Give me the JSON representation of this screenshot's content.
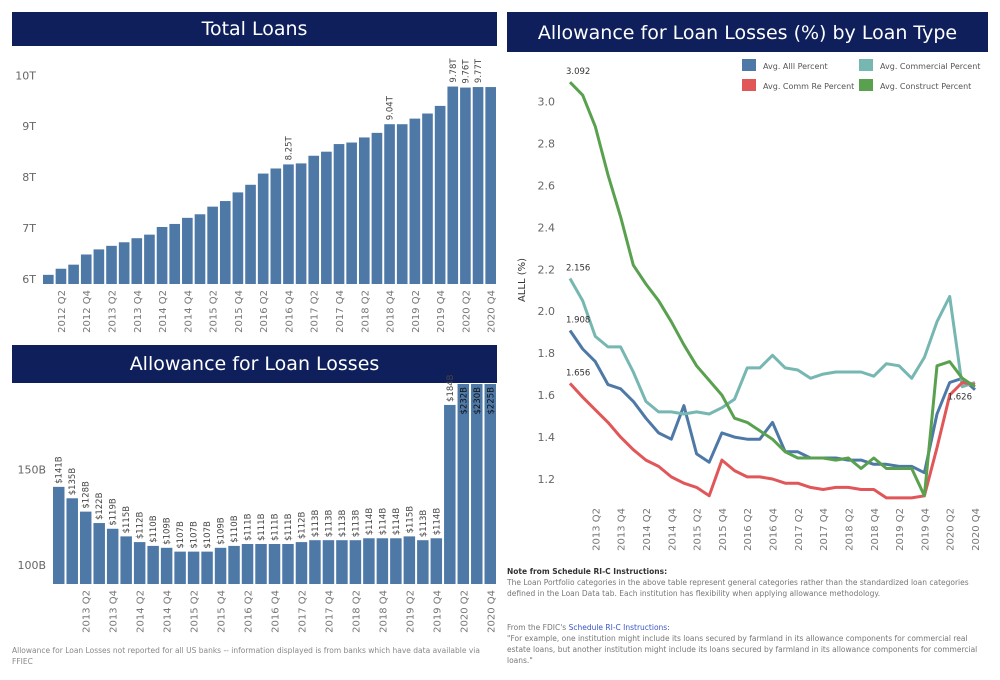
{
  "headers": {
    "total_loans": "Total Loans",
    "allowance": "Allowance for Loan Losses",
    "alll": "Allowance for Loan Losses (%) by Loan Type"
  },
  "colors": {
    "header_bg": "#0e1f5b",
    "bar": "#4e79a7",
    "alll": "#4e79a7",
    "commercial": "#76b7b2",
    "comm_re": "#e15759",
    "construct": "#59a14f"
  },
  "footnote": "Allowance for Loan Losses not reported for all US banks -- information displayed is from banks which have data available via FFIEC",
  "rc_note": {
    "title": "Note from Schedule RI-C Instructions:",
    "body": "The Loan Portfolio categories in the above table represent general categories rather than the standardized loan categories defined in the Loan Data tab. Each institution has flexibility when applying allowance methodology."
  },
  "fdic_note": {
    "prefix": "From the FDIC's",
    "link": "Schedule RI-C Instructions:",
    "quote": "\"For example, one institution might include its loans secured by farmland in its allowance components for commercial real estate loans, but another institution might include its loans secured by farmland in its allowance components for commercial loans.\""
  },
  "chart_data": [
    {
      "id": "total_loans",
      "type": "bar",
      "title": "Total Loans",
      "categories": [
        "2012 Q1",
        "2012 Q2",
        "2012 Q3",
        "2012 Q4",
        "2013 Q1",
        "2013 Q2",
        "2013 Q3",
        "2013 Q4",
        "2014 Q1",
        "2014 Q2",
        "2014 Q3",
        "2014 Q4",
        "2015 Q1",
        "2015 Q2",
        "2015 Q3",
        "2015 Q4",
        "2016 Q1",
        "2016 Q2",
        "2016 Q3",
        "2016 Q4",
        "2017 Q1",
        "2017 Q2",
        "2017 Q3",
        "2017 Q4",
        "2018 Q1",
        "2018 Q2",
        "2018 Q3",
        "2018 Q4",
        "2019 Q1",
        "2019 Q2",
        "2019 Q3",
        "2019 Q4",
        "2020 Q1",
        "2020 Q2",
        "2020 Q3",
        "2020 Q4"
      ],
      "tick_labels": [
        "2012 Q2",
        "2012 Q4",
        "2013 Q2",
        "2013 Q4",
        "2014 Q2",
        "2014 Q4",
        "2015 Q2",
        "2015 Q4",
        "2016 Q2",
        "2016 Q4",
        "2017 Q2",
        "2017 Q4",
        "2018 Q2",
        "2018 Q4",
        "2019 Q2",
        "2019 Q4",
        "2020 Q2",
        "2020 Q4"
      ],
      "values": [
        6.08,
        6.2,
        6.28,
        6.48,
        6.58,
        6.65,
        6.72,
        6.8,
        6.87,
        7.02,
        7.08,
        7.2,
        7.27,
        7.42,
        7.53,
        7.7,
        7.85,
        8.07,
        8.17,
        8.25,
        8.27,
        8.42,
        8.5,
        8.65,
        8.68,
        8.78,
        8.87,
        9.04,
        9.04,
        9.15,
        9.25,
        9.4,
        9.78,
        9.76,
        9.77,
        9.77
      ],
      "data_labels": {
        "19": "8.25T",
        "27": "9.04T",
        "32": "9.78T",
        "33": "9.76T",
        "34": "9.77T"
      },
      "y_ticks": [
        "6T",
        "7T",
        "8T",
        "9T",
        "10T"
      ],
      "ylim": [
        5.9,
        10.4
      ],
      "grid": false
    },
    {
      "id": "allowance",
      "type": "bar",
      "title": "Allowance for Loan Losses",
      "categories": [
        "2012 Q4",
        "2013 Q1",
        "2013 Q2",
        "2013 Q3",
        "2013 Q4",
        "2014 Q1",
        "2014 Q2",
        "2014 Q3",
        "2014 Q4",
        "2015 Q1",
        "2015 Q2",
        "2015 Q3",
        "2015 Q4",
        "2016 Q1",
        "2016 Q2",
        "2016 Q3",
        "2016 Q4",
        "2017 Q1",
        "2017 Q2",
        "2017 Q3",
        "2017 Q4",
        "2018 Q1",
        "2018 Q2",
        "2018 Q3",
        "2018 Q4",
        "2019 Q1",
        "2019 Q2",
        "2019 Q3",
        "2019 Q4",
        "2020 Q1",
        "2020 Q2",
        "2020 Q3",
        "2020 Q4"
      ],
      "tick_labels": [
        "2013 Q2",
        "2013 Q4",
        "2014 Q2",
        "2014 Q4",
        "2015 Q2",
        "2015 Q4",
        "2016 Q2",
        "2016 Q4",
        "2017 Q2",
        "2017 Q4",
        "2018 Q2",
        "2018 Q4",
        "2019 Q2",
        "2019 Q4",
        "2020 Q2",
        "2020 Q4"
      ],
      "values": [
        141,
        135,
        128,
        122,
        119,
        115,
        112,
        110,
        109,
        107,
        107,
        107,
        109,
        110,
        111,
        111,
        111,
        111,
        112,
        113,
        113,
        113,
        113,
        114,
        114,
        114,
        115,
        113,
        114,
        184,
        232,
        230,
        225
      ],
      "value_labels": [
        "$141B",
        "$135B",
        "$128B",
        "$122B",
        "$119B",
        "$115B",
        "$112B",
        "$110B",
        "$109B",
        "$107B",
        "$107B",
        "$107B",
        "$109B",
        "$110B",
        "$111B",
        "$111B",
        "$111B",
        "$111B",
        "$112B",
        "$113B",
        "$113B",
        "$113B",
        "$113B",
        "$114B",
        "$114B",
        "$114B",
        "$115B",
        "$113B",
        "$114B",
        "$184B",
        "$232B",
        "$230B",
        "$225B"
      ],
      "y_ticks": [
        {
          "value": 100,
          "label": "100B"
        },
        {
          "value": 150,
          "label": "150B"
        }
      ],
      "ylim": [
        90,
        195
      ],
      "grid": false
    },
    {
      "id": "alll",
      "type": "line",
      "title": "Allowance for Loan Losses (%) by Loan Type",
      "ylabel": "ALLL (%)",
      "x": [
        "2012 Q4",
        "2013 Q1",
        "2013 Q2",
        "2013 Q3",
        "2013 Q4",
        "2014 Q1",
        "2014 Q2",
        "2014 Q3",
        "2014 Q4",
        "2015 Q1",
        "2015 Q2",
        "2015 Q3",
        "2015 Q4",
        "2016 Q1",
        "2016 Q2",
        "2016 Q3",
        "2016 Q4",
        "2017 Q1",
        "2017 Q2",
        "2017 Q3",
        "2017 Q4",
        "2018 Q1",
        "2018 Q2",
        "2018 Q3",
        "2018 Q4",
        "2019 Q1",
        "2019 Q2",
        "2019 Q3",
        "2019 Q4",
        "2020 Q1",
        "2020 Q2",
        "2020 Q3",
        "2020 Q4"
      ],
      "tick_labels": [
        "2013 Q2",
        "2013 Q4",
        "2014 Q2",
        "2014 Q4",
        "2015 Q2",
        "2015 Q4",
        "2016 Q2",
        "2016 Q4",
        "2017 Q2",
        "2017 Q4",
        "2018 Q2",
        "2018 Q4",
        "2019 Q2",
        "2019 Q4",
        "2020 Q2",
        "2020 Q4"
      ],
      "y_ticks": [
        1.2,
        1.4,
        1.6,
        1.8,
        2.0,
        2.2,
        2.4,
        2.6,
        2.8,
        3.0
      ],
      "y_tick_labels": [
        "1.2",
        "1.4",
        "1.6",
        "1.8",
        "2.0",
        "2.2",
        "2.4",
        "2.6",
        "2.8",
        "3.0"
      ],
      "ylim": [
        1.1,
        3.15
      ],
      "legend_position": "top-right",
      "series": [
        {
          "name": "Avg. Alll Percent",
          "color": "#4e79a7",
          "values": [
            1.908,
            1.82,
            1.76,
            1.65,
            1.63,
            1.57,
            1.49,
            1.42,
            1.39,
            1.55,
            1.32,
            1.28,
            1.42,
            1.4,
            1.39,
            1.39,
            1.47,
            1.33,
            1.33,
            1.3,
            1.3,
            1.3,
            1.29,
            1.29,
            1.27,
            1.27,
            1.26,
            1.26,
            1.23,
            1.51,
            1.66,
            1.68,
            1.626
          ]
        },
        {
          "name": "Avg. Commercial Percent",
          "color": "#76b7b2",
          "values": [
            2.156,
            2.05,
            1.88,
            1.83,
            1.83,
            1.71,
            1.57,
            1.52,
            1.52,
            1.51,
            1.52,
            1.51,
            1.54,
            1.58,
            1.73,
            1.73,
            1.79,
            1.73,
            1.72,
            1.68,
            1.7,
            1.71,
            1.71,
            1.71,
            1.69,
            1.75,
            1.74,
            1.68,
            1.78,
            1.95,
            2.07,
            1.64,
            1.66
          ]
        },
        {
          "name": "Avg. Comm Re Percent",
          "color": "#e15759",
          "values": [
            1.656,
            1.59,
            1.53,
            1.47,
            1.4,
            1.34,
            1.29,
            1.26,
            1.21,
            1.18,
            1.16,
            1.12,
            1.29,
            1.24,
            1.21,
            1.21,
            1.2,
            1.18,
            1.18,
            1.16,
            1.15,
            1.16,
            1.16,
            1.15,
            1.15,
            1.11,
            1.11,
            1.11,
            1.12,
            1.35,
            1.6,
            1.66,
            1.65
          ]
        },
        {
          "name": "Avg. Construct Percent",
          "color": "#59a14f",
          "values": [
            3.092,
            3.03,
            2.88,
            2.65,
            2.45,
            2.22,
            2.13,
            2.05,
            1.95,
            1.84,
            1.74,
            1.67,
            1.6,
            1.49,
            1.47,
            1.43,
            1.39,
            1.33,
            1.3,
            1.3,
            1.3,
            1.29,
            1.3,
            1.25,
            1.3,
            1.25,
            1.25,
            1.25,
            1.12,
            1.74,
            1.76,
            1.68,
            1.64
          ]
        }
      ],
      "point_labels": [
        {
          "series": 3,
          "index": 0,
          "text": "3.092"
        },
        {
          "series": 1,
          "index": 0,
          "text": "2.156"
        },
        {
          "series": 0,
          "index": 0,
          "text": "1.908"
        },
        {
          "series": 2,
          "index": 0,
          "text": "1.656"
        },
        {
          "series": 0,
          "index": 32,
          "text": "1.626"
        }
      ]
    }
  ]
}
